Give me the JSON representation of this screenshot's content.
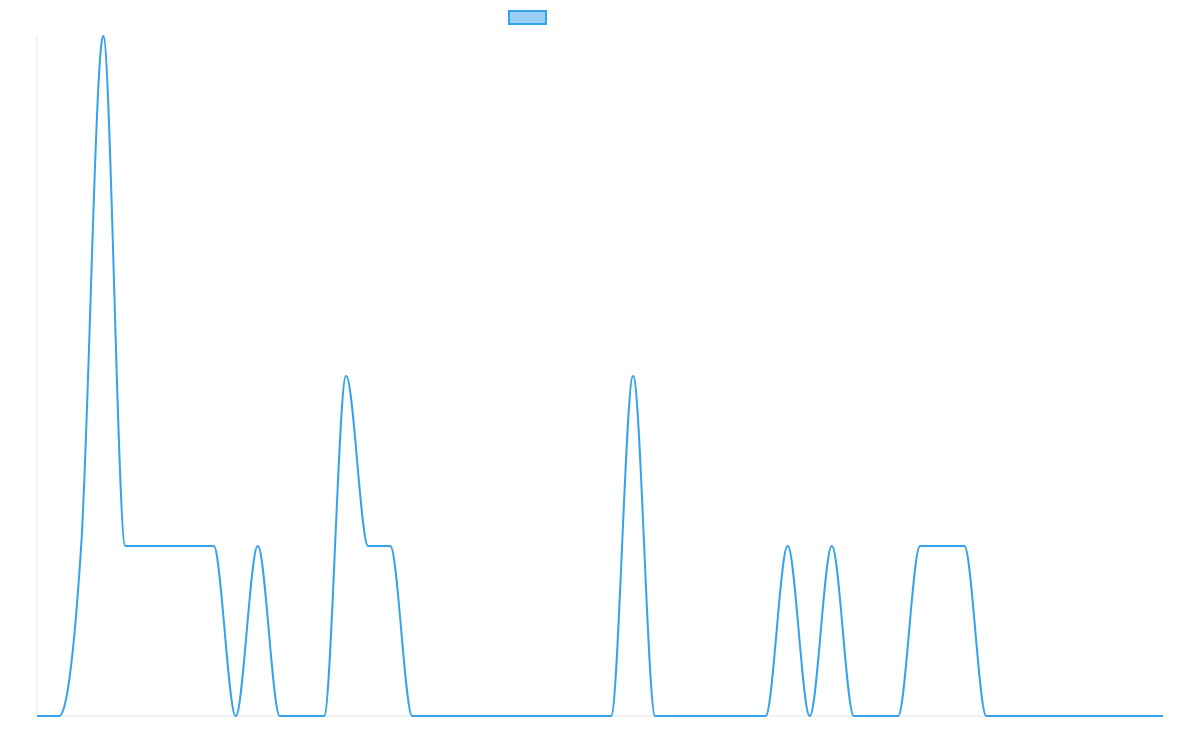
{
  "chart_data": {
    "type": "line",
    "title": "",
    "xlabel": "",
    "ylabel": "",
    "legend": {
      "position": "top",
      "entries": [
        {
          "name": "",
          "color": "#36a2eb",
          "fill": "#9ad0f5"
        }
      ]
    },
    "grid": false,
    "axes_visible": true,
    "tick_labels_visible": false,
    "x": [
      0,
      1,
      2,
      3,
      4,
      5,
      6,
      7,
      8,
      9,
      10,
      11,
      12,
      13,
      14,
      15,
      16,
      17,
      18,
      19,
      20,
      21,
      22,
      23,
      24,
      25,
      26,
      27,
      28,
      29,
      30,
      31,
      32,
      33,
      34,
      35,
      36,
      37,
      38,
      39,
      40,
      41,
      42,
      43,
      44,
      45,
      46,
      47,
      48,
      49,
      50,
      51
    ],
    "ylim": [
      0,
      4
    ],
    "series": [
      {
        "name": "",
        "color": "#36a2eb",
        "values": [
          0,
          0,
          1,
          4,
          1,
          1,
          1,
          1,
          1,
          0,
          1,
          0,
          0,
          0,
          2,
          1,
          1,
          0,
          0,
          0,
          0,
          0,
          0,
          0,
          0,
          0,
          0,
          2,
          0,
          0,
          0,
          0,
          0,
          0,
          1,
          0,
          1,
          0,
          0,
          0,
          1,
          1,
          1,
          0,
          0,
          0,
          0,
          0,
          0,
          0,
          0,
          0
        ]
      }
    ]
  }
}
